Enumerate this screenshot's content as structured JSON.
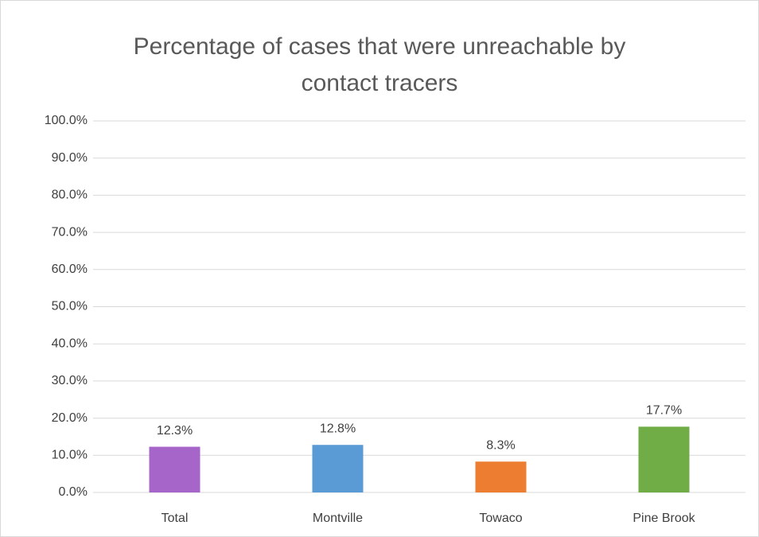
{
  "chart_data": {
    "type": "bar",
    "title": "Percentage of cases that were unreachable by contact tracers",
    "categories": [
      "Total",
      "Montville",
      "Towaco",
      "Pine Brook"
    ],
    "values": [
      12.3,
      12.8,
      8.3,
      17.7
    ],
    "value_labels": [
      "12.3%",
      "12.8%",
      "8.3%",
      "17.7%"
    ],
    "colors": [
      "#a565c9",
      "#5b9bd5",
      "#ed7d31",
      "#70ad47"
    ],
    "ylim": [
      0,
      100
    ],
    "yticks": [
      {
        "value": 0,
        "label": "0.0%"
      },
      {
        "value": 10,
        "label": "10.0%"
      },
      {
        "value": 20,
        "label": "20.0%"
      },
      {
        "value": 30,
        "label": "30.0%"
      },
      {
        "value": 40,
        "label": "40.0%"
      },
      {
        "value": 50,
        "label": "50.0%"
      },
      {
        "value": 60,
        "label": "60.0%"
      },
      {
        "value": 70,
        "label": "70.0%"
      },
      {
        "value": 80,
        "label": "80.0%"
      },
      {
        "value": 90,
        "label": "90.0%"
      },
      {
        "value": 100,
        "label": "100.0%"
      }
    ],
    "grid": true
  }
}
